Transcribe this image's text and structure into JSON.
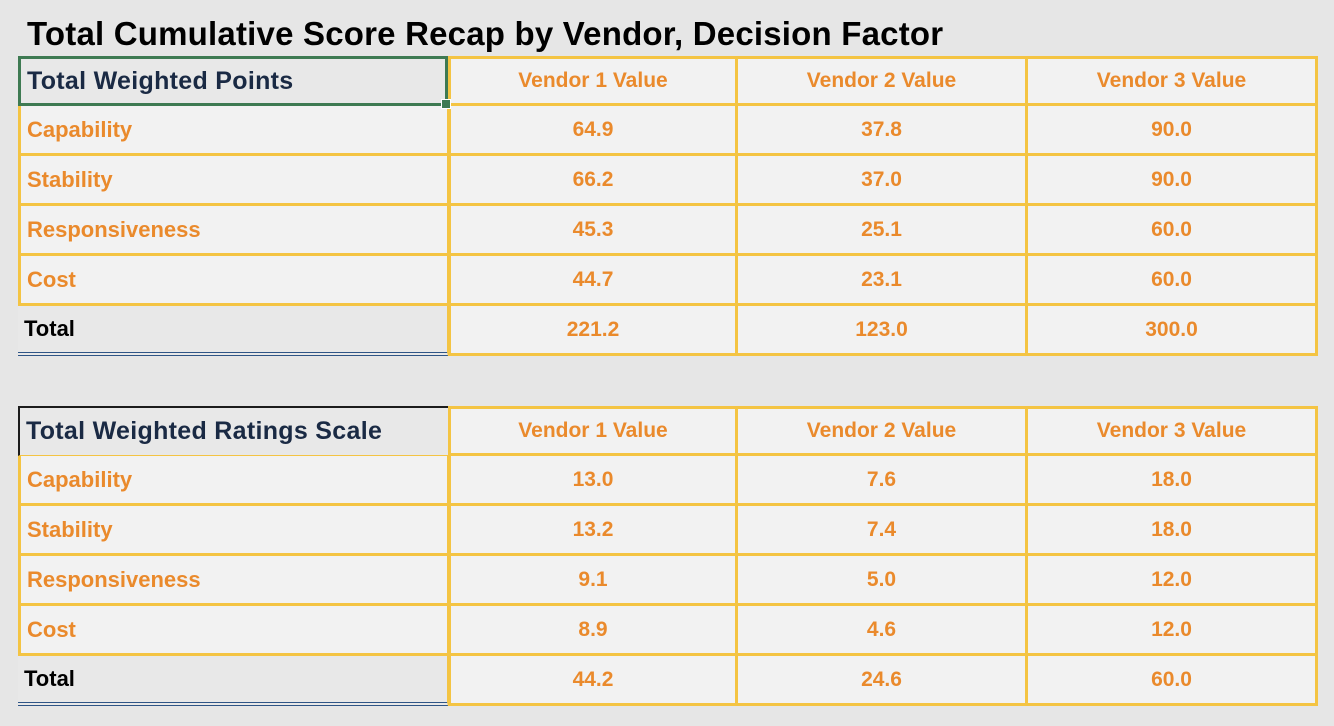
{
  "title": "Total Cumulative Score Recap by Vendor, Decision Factor",
  "colors": {
    "accent_text": "#ea8a2c",
    "grid_border": "#f4c443",
    "header_text": "#1a2a44",
    "selection_border": "#3e7a52",
    "double_underline": "#2f5586"
  },
  "tables": [
    {
      "header_label": "Total Weighted Points",
      "columns": [
        "Vendor 1 Value",
        "Vendor 2 Value",
        "Vendor 3 Value"
      ],
      "rows": [
        {
          "label": "Capability",
          "values": [
            "64.9",
            "37.8",
            "90.0"
          ]
        },
        {
          "label": "Stability",
          "values": [
            "66.2",
            "37.0",
            "90.0"
          ]
        },
        {
          "label": "Responsiveness",
          "values": [
            "45.3",
            "25.1",
            "60.0"
          ]
        },
        {
          "label": "Cost",
          "values": [
            "44.7",
            "23.1",
            "60.0"
          ]
        }
      ],
      "total": {
        "label": "Total",
        "values": [
          "221.2",
          "123.0",
          "300.0"
        ]
      }
    },
    {
      "header_label": "Total Weighted Ratings Scale",
      "columns": [
        "Vendor 1 Value",
        "Vendor 2 Value",
        "Vendor 3 Value"
      ],
      "rows": [
        {
          "label": "Capability",
          "values": [
            "13.0",
            "7.6",
            "18.0"
          ]
        },
        {
          "label": "Stability",
          "values": [
            "13.2",
            "7.4",
            "18.0"
          ]
        },
        {
          "label": "Responsiveness",
          "values": [
            "9.1",
            "5.0",
            "12.0"
          ]
        },
        {
          "label": "Cost",
          "values": [
            "8.9",
            "4.6",
            "12.0"
          ]
        }
      ],
      "total": {
        "label": "Total",
        "values": [
          "44.2",
          "24.6",
          "60.0"
        ]
      }
    }
  ]
}
